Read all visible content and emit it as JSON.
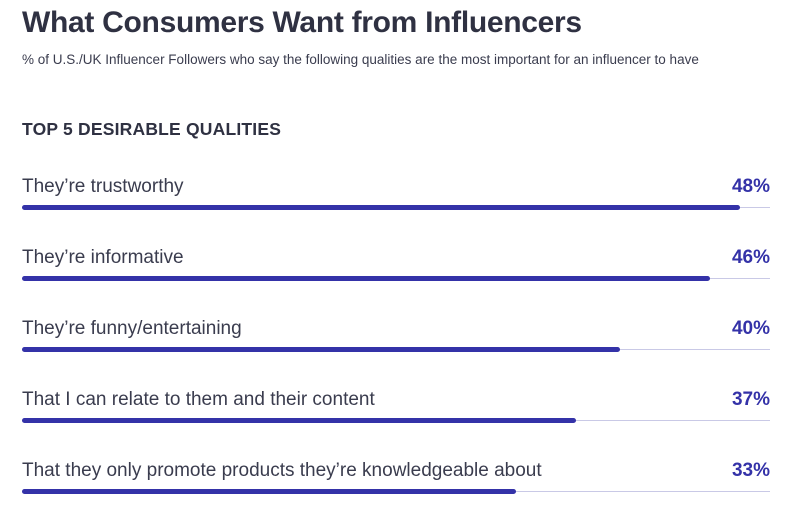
{
  "title": "What Consumers Want from Influencers",
  "subtitle": "% of U.S./UK Influencer Followers who say the following qualities are the most important for an influencer to have",
  "section_heading": "TOP 5 DESIRABLE QUALITIES",
  "colors": {
    "bar": "#3432a8",
    "value_text": "#3432a8",
    "track": "#c9c9e6"
  },
  "chart_data": {
    "type": "bar",
    "orientation": "horizontal",
    "title": "What Consumers Want from Influencers",
    "subtitle": "% of U.S./UK Influencer Followers who say the following qualities are the most important for an influencer to have",
    "xlabel": "",
    "ylabel": "",
    "xlim": [
      0,
      50
    ],
    "categories": [
      "They’re trustworthy",
      "They’re informative",
      "They’re funny/entertaining",
      "That I can relate to them and their content",
      "That they only promote products they’re knowledgeable about"
    ],
    "values": [
      48,
      46,
      40,
      37,
      33
    ],
    "value_labels": [
      "48%",
      "46%",
      "40%",
      "37%",
      "33%"
    ]
  }
}
